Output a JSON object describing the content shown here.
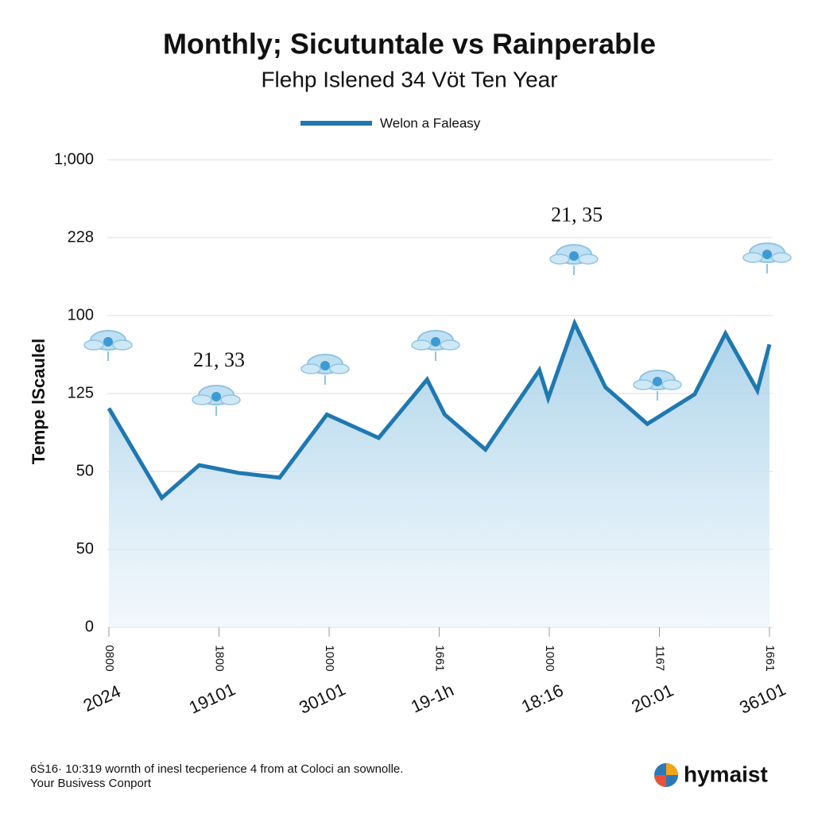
{
  "chart_data": {
    "type": "line",
    "title": "Monthly; Sicutuntale vs Rainperable",
    "subtitle": "Flehp Islened 34 Vöt Ten Year",
    "y_label": "Tempe lScaulel",
    "series": [
      {
        "name": "Welon a Faleasy",
        "color": "#1f78b0",
        "x": [
          0,
          0.48,
          0.82,
          1.18,
          1.55,
          1.98,
          2.45,
          2.89,
          3.05,
          3.42,
          3.91,
          3.99,
          4.23,
          4.51,
          4.89,
          5.32,
          5.6,
          5.89,
          6.0
        ],
        "values": [
          2.81,
          1.66,
          2.08,
          1.98,
          1.92,
          2.73,
          2.43,
          3.18,
          2.73,
          2.28,
          3.3,
          2.94,
          3.9,
          3.08,
          2.61,
          2.99,
          3.77,
          3.04,
          3.63
        ]
      }
    ],
    "xlim": [
      0,
      6
    ],
    "xticks": [
      {
        "value": 0,
        "label": "0800"
      },
      {
        "value": 1,
        "label": "1800"
      },
      {
        "value": 2,
        "label": "1000"
      },
      {
        "value": 3,
        "label": "1661"
      },
      {
        "value": 4,
        "label": "1000"
      },
      {
        "value": 5,
        "label": "1167"
      },
      {
        "value": 6,
        "label": "1661"
      }
    ],
    "xtick_sublabels": [
      "2024",
      "19101",
      "30101",
      "19-1h",
      "18:16",
      "20:01",
      "36101"
    ],
    "ylim": [
      0,
      6
    ],
    "yticks": [
      {
        "value": 0,
        "label": "0"
      },
      {
        "value": 1,
        "label": "50"
      },
      {
        "value": 2,
        "label": "50"
      },
      {
        "value": 3,
        "label": "125"
      },
      {
        "value": 4,
        "label": "100"
      },
      {
        "value": 5,
        "label": "228"
      },
      {
        "value": 6,
        "label": "1;000"
      }
    ],
    "grid": true,
    "annotations": [
      {
        "text": "21, 33",
        "x": 1,
        "y": 3.41
      },
      {
        "text": "21, 35",
        "x": 4.25,
        "y": 5.27
      }
    ],
    "footer": [
      "6Ṡ16· 10:319 wornth of inesl tecperience 4 from at Coloci an sownolle.",
      "Your Busivess Conport"
    ],
    "brand": "hymaist"
  }
}
